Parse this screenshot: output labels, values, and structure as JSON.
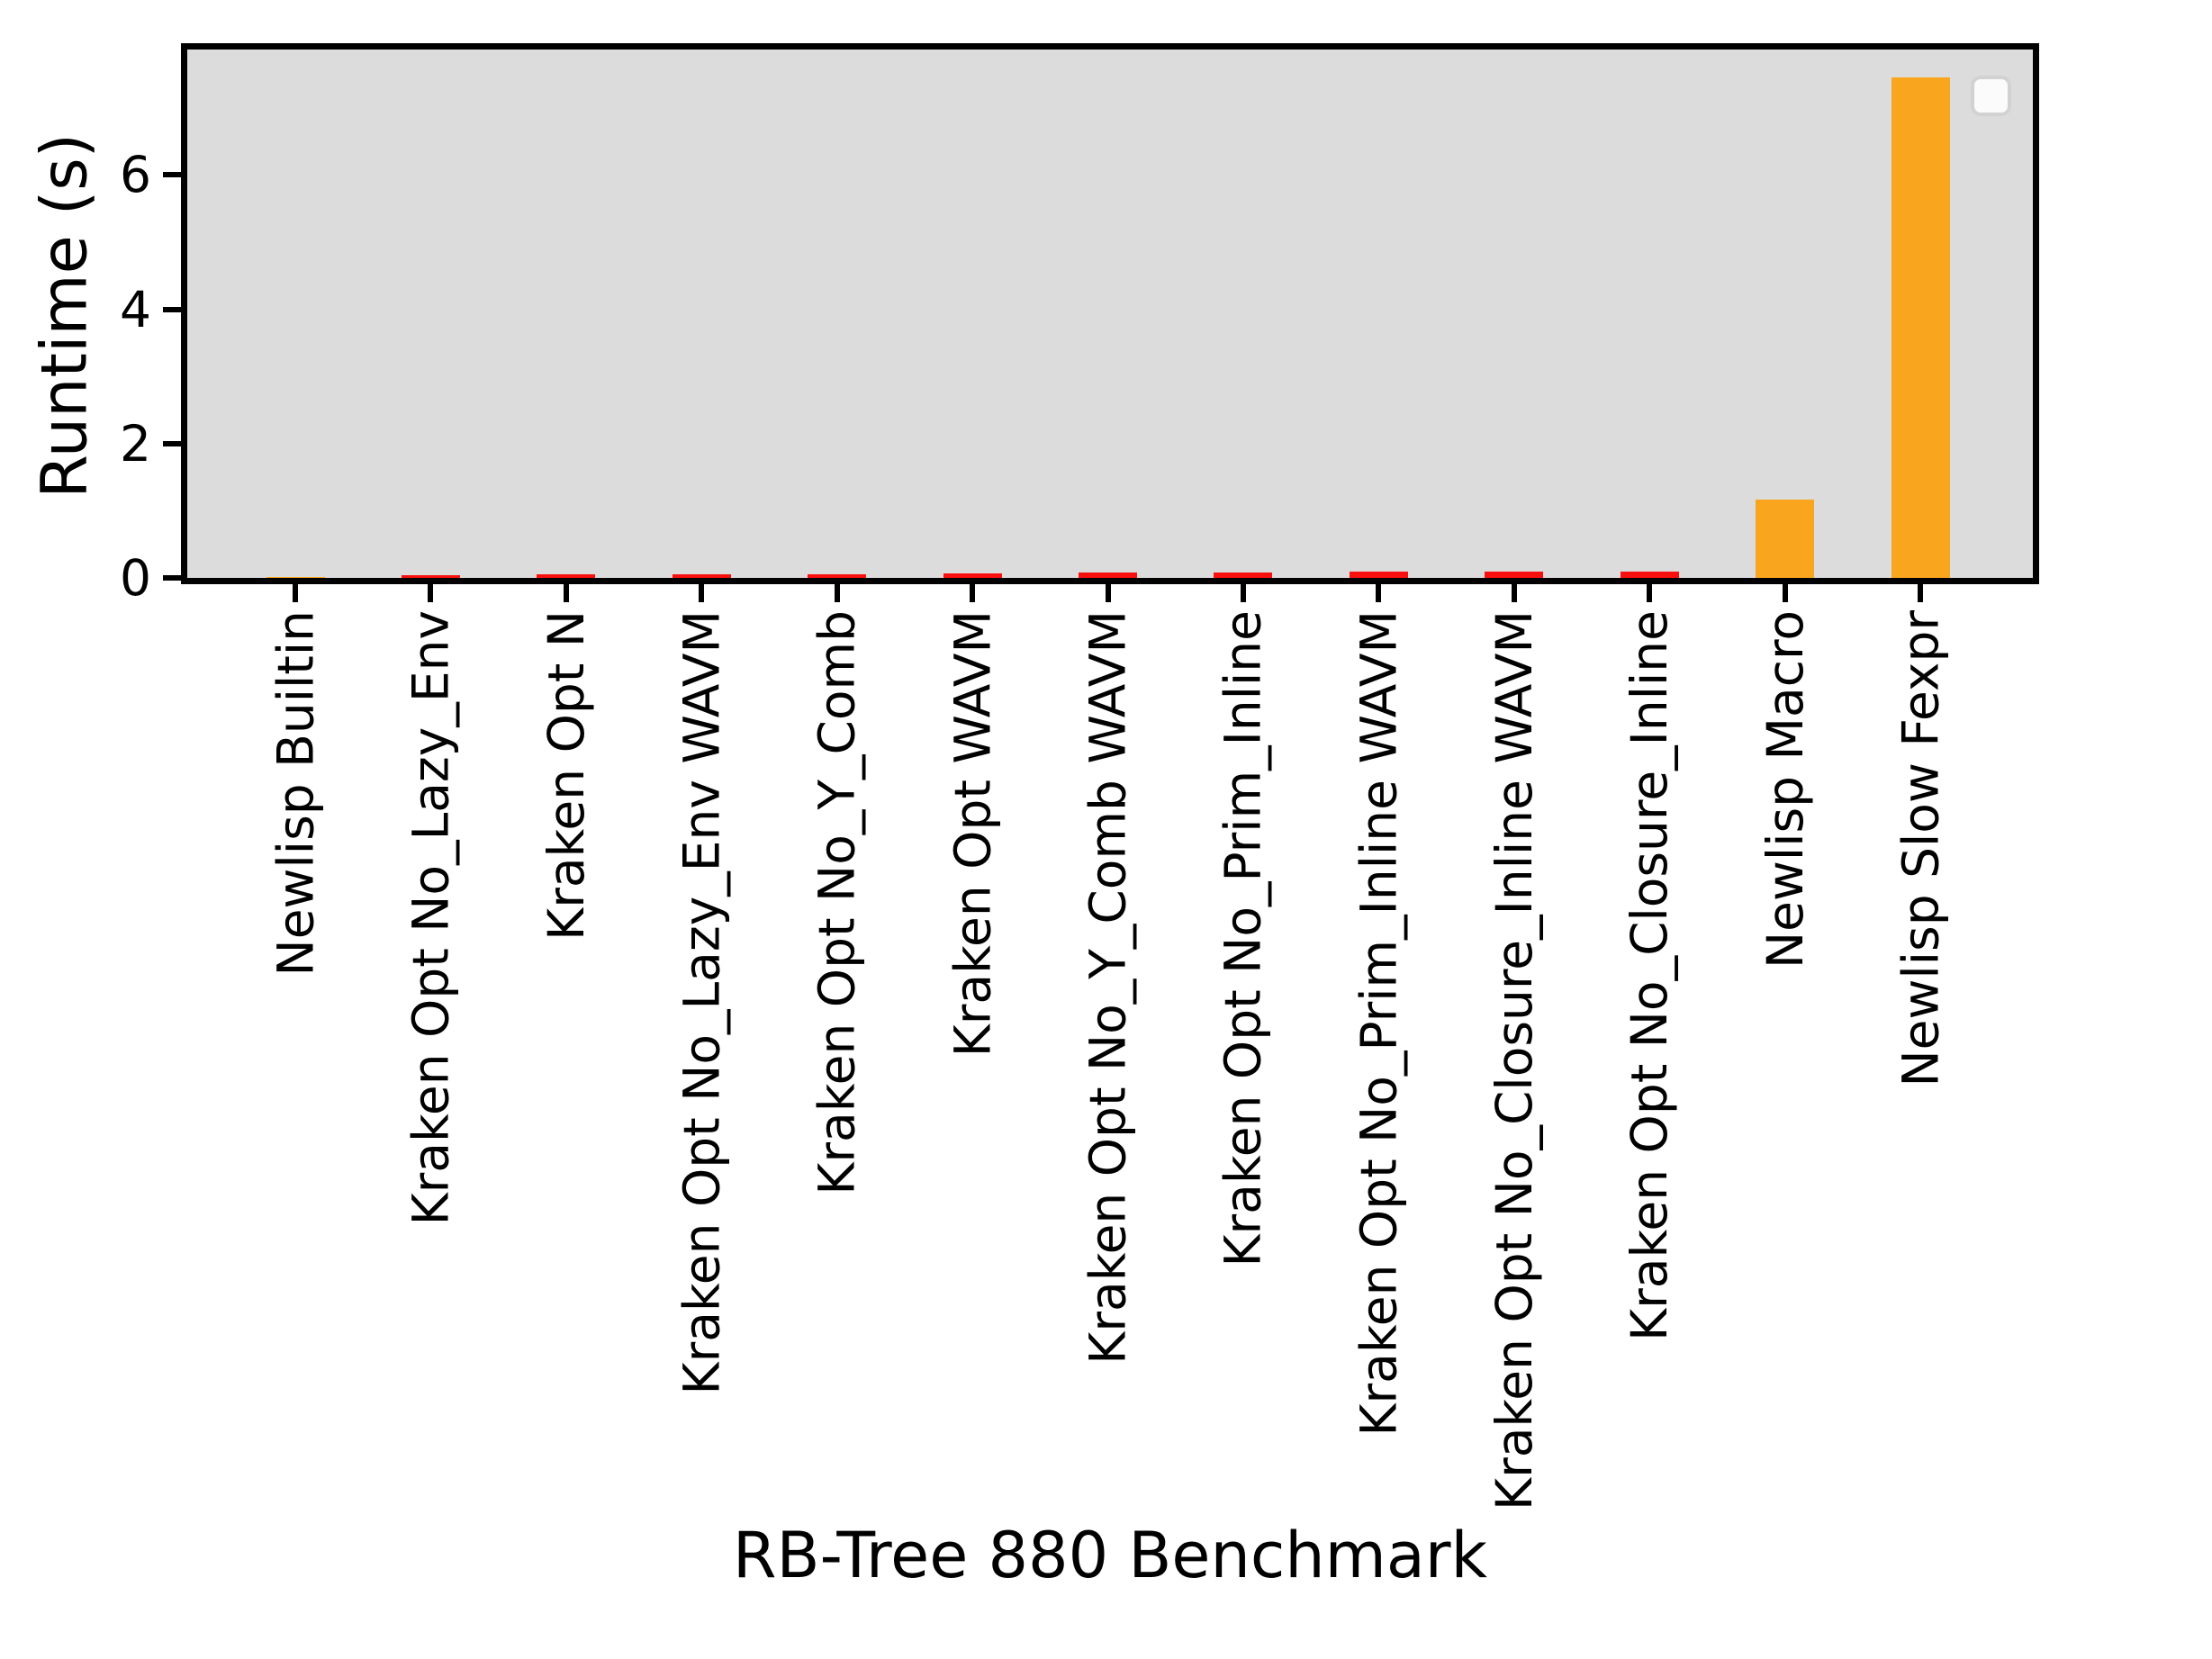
{
  "figure": {
    "background": "#ffffff",
    "plot_background": "#dcdcdc",
    "spine_color": "#000000"
  },
  "chart_data": {
    "type": "bar",
    "title": "",
    "xlabel": "RB-Tree 880 Benchmark",
    "ylabel": "Runtime (s)",
    "categories": [
      "Newlisp Builtin",
      "Kraken Opt No_Lazy_Env",
      "Kraken Opt N",
      "Kraken Opt No_Lazy_Env WAVM",
      "Kraken Opt No_Y_Comb",
      "Kraken Opt WAVM",
      "Kraken Opt No_Y_Comb WAVM",
      "Kraken Opt No_Prim_Inline",
      "Kraken Opt No_Prim_Inline WAVM",
      "Kraken Opt No_Closure_Inline WAVM",
      "Kraken Opt No_Closure_Inline",
      "Newlisp Macro",
      "Newlisp Slow Fexpr"
    ],
    "values": [
      0.01,
      0.04,
      0.05,
      0.06,
      0.06,
      0.07,
      0.08,
      0.08,
      0.09,
      0.09,
      0.1,
      1.17,
      7.45
    ],
    "bar_colors": [
      "#f9a51d",
      "#fa0f0f",
      "#fa0f0f",
      "#fa0f0f",
      "#fa0f0f",
      "#fa0f0f",
      "#fa0f0f",
      "#fa0f0f",
      "#fa0f0f",
      "#fa0f0f",
      "#fa0f0f",
      "#f9a51d",
      "#f9a51d"
    ],
    "colors": {
      "kraken_red": "#fa0f0f",
      "newlisp_orange": "#f9a51d"
    },
    "yticks": [
      "0",
      "2",
      "4",
      "6"
    ],
    "ylim": [
      0,
      7.87
    ],
    "grid": false,
    "legend": {
      "visible": true,
      "entries": [],
      "position": "upper right"
    },
    "tick_label_rotation_deg": 90
  }
}
